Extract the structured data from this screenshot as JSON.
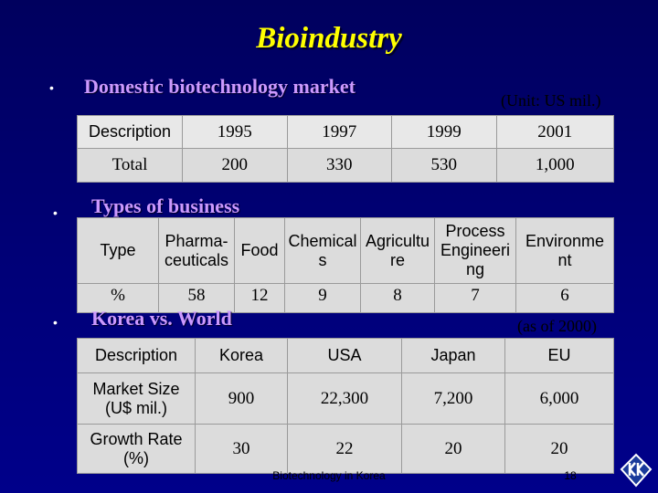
{
  "title": "Bioindustry",
  "section1": {
    "heading": "Domestic biotechnology market",
    "unit_note": "(Unit: US mil.)",
    "table": {
      "headers": [
        "Description",
        "1995",
        "1997",
        "1999",
        "2001"
      ],
      "row": [
        "Total",
        "200",
        "330",
        "530",
        "1,000"
      ]
    }
  },
  "section2": {
    "heading": "Types of  business",
    "table": {
      "headers": [
        "Type",
        "Pharma-ceuticals",
        "Food",
        "Chemicals",
        "Agriculture",
        "Process Engineering",
        "Environment"
      ],
      "header_lines": {
        "pharma": [
          "Pharma-",
          "ceuticals"
        ],
        "chemical": [
          "Chemical",
          "s"
        ],
        "agri": [
          "Agricultu",
          "re"
        ],
        "process": [
          "Process",
          "Engineeri",
          "ng"
        ],
        "env": [
          "Environme",
          "nt"
        ]
      },
      "row": [
        "%",
        "58",
        "12",
        "9",
        "8",
        "7",
        "6"
      ]
    }
  },
  "section3": {
    "heading": "Korea vs. World",
    "as_of": "(as of 2000)",
    "table": {
      "headers": [
        "Description",
        "Korea",
        "USA",
        "Japan",
        "EU"
      ],
      "rows": [
        {
          "label_lines": [
            "Market Size",
            "(U$ mil.)"
          ],
          "values": [
            "900",
            "22,300",
            "7,200",
            "6,000"
          ]
        },
        {
          "label_lines": [
            "Growth Rate",
            "(%)"
          ],
          "values": [
            "30",
            "22",
            "20",
            "20"
          ]
        }
      ]
    }
  },
  "footer": "Biotechnology in Korea",
  "page_number": "18",
  "bullet_glyph": "•",
  "logo_icon": "kk-logo-icon",
  "colors": {
    "background": "#00006a",
    "title": "#ffff00",
    "heading": "#cc99ff",
    "table_bg": "#dcdcdc"
  }
}
